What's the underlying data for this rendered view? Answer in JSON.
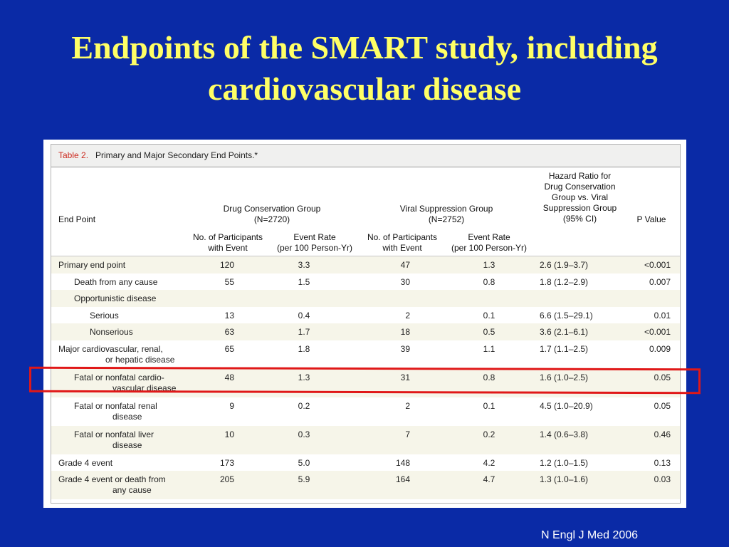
{
  "slide": {
    "title_line1": "Endpoints of the SMART study, including",
    "title_line2": "cardiovascular disease",
    "citation": "N Engl J Med 2006"
  },
  "table": {
    "caption_label": "Table 2.",
    "caption_text": "Primary and Major Secondary End Points.*",
    "headers": {
      "end_point": "End Point",
      "dc_group_line1": "Drug Conservation Group",
      "dc_group_line2": "(N=2720)",
      "vs_group_line1": "Viral Suppression Group",
      "vs_group_line2": "(N=2752)",
      "hr_line1": "Hazard Ratio for",
      "hr_line2": "Drug Conservation",
      "hr_line3": "Group vs. Viral",
      "hr_line4": "Suppression Group",
      "hr_line5": "(95% CI)",
      "p_value": "P Value",
      "dc_sub_participants_1": "No. of Participants",
      "dc_sub_participants_2": "with Event",
      "dc_sub_rate_1": "Event Rate",
      "dc_sub_rate_2": "(per 100 Person-Yr)",
      "vs_sub_participants_1": "No. of Participants",
      "vs_sub_participants_2": "with Event",
      "vs_sub_rate_1": "Event Rate",
      "vs_sub_rate_2": "(per 100 Person-Yr)"
    },
    "rows": [
      {
        "label1": "Primary end point",
        "label2": "",
        "dc_n": "120",
        "dc_rate": "3.3",
        "vs_n": "47",
        "vs_rate": "1.3",
        "hr": "2.6 (1.9–3.7)",
        "p": "<0.001"
      },
      {
        "label1": "Death from any cause",
        "label2": "",
        "dc_n": "55",
        "dc_rate": "1.5",
        "vs_n": "30",
        "vs_rate": "0.8",
        "hr": "1.8 (1.2–2.9)",
        "p": "0.007"
      },
      {
        "label1": "Opportunistic disease",
        "label2": "",
        "dc_n": "",
        "dc_rate": "",
        "vs_n": "",
        "vs_rate": "",
        "hr": "",
        "p": ""
      },
      {
        "label1": "Serious",
        "label2": "",
        "dc_n": "13",
        "dc_rate": "0.4",
        "vs_n": "2",
        "vs_rate": "0.1",
        "hr": "6.6 (1.5–29.1)",
        "p": "0.01"
      },
      {
        "label1": "Nonserious",
        "label2": "",
        "dc_n": "63",
        "dc_rate": "1.7",
        "vs_n": "18",
        "vs_rate": "0.5",
        "hr": "3.6 (2.1–6.1)",
        "p": "<0.001"
      },
      {
        "label1": "Major cardiovascular, renal,",
        "label2": "or hepatic disease",
        "dc_n": "65",
        "dc_rate": "1.8",
        "vs_n": "39",
        "vs_rate": "1.1",
        "hr": "1.7 (1.1–2.5)",
        "p": "0.009"
      },
      {
        "label1": "Fatal or nonfatal cardio-",
        "label2": "vascular disease",
        "dc_n": "48",
        "dc_rate": "1.3",
        "vs_n": "31",
        "vs_rate": "0.8",
        "hr": "1.6 (1.0–2.5)",
        "p": "0.05"
      },
      {
        "label1": "Fatal or nonfatal renal",
        "label2": "disease",
        "dc_n": "9",
        "dc_rate": "0.2",
        "vs_n": "2",
        "vs_rate": "0.1",
        "hr": "4.5 (1.0–20.9)",
        "p": "0.05"
      },
      {
        "label1": "Fatal or nonfatal liver",
        "label2": "disease",
        "dc_n": "10",
        "dc_rate": "0.3",
        "vs_n": "7",
        "vs_rate": "0.2",
        "hr": "1.4 (0.6–3.8)",
        "p": "0.46"
      },
      {
        "label1": "Grade 4 event",
        "label2": "",
        "dc_n": "173",
        "dc_rate": "5.0",
        "vs_n": "148",
        "vs_rate": "4.2",
        "hr": "1.2 (1.0–1.5)",
        "p": "0.13"
      },
      {
        "label1": "Grade 4 event or death from",
        "label2": "any cause",
        "dc_n": "205",
        "dc_rate": "5.9",
        "vs_n": "164",
        "vs_rate": "4.7",
        "hr": "1.3 (1.0–1.6)",
        "p": "0.03"
      }
    ]
  },
  "colors": {
    "background": "#0a2aa6",
    "title": "#ffff66",
    "caption_label": "#cc2a1f",
    "highlight": "#e01818",
    "row_shade": "#f6f5e9"
  }
}
